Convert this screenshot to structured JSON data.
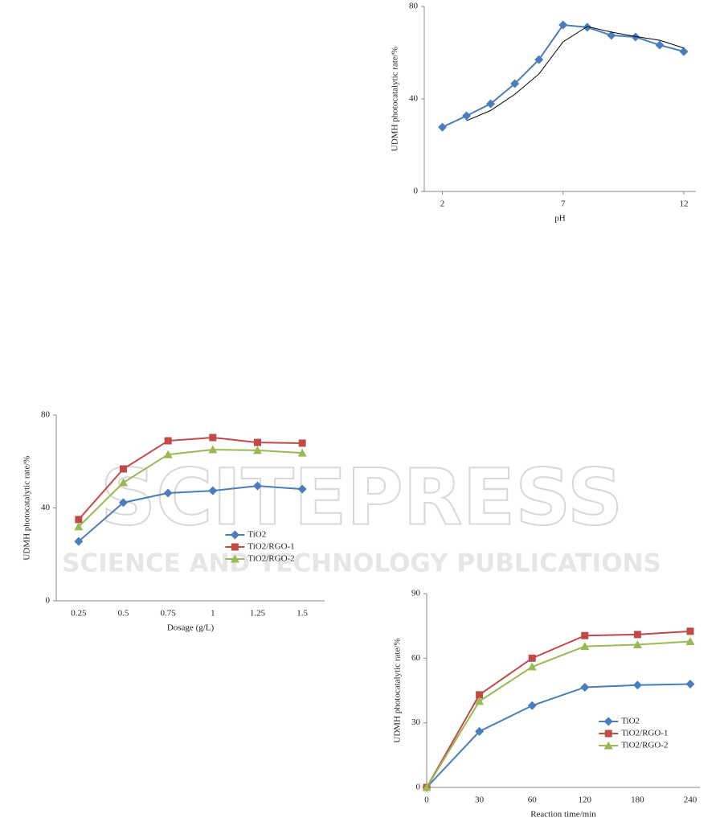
{
  "watermark": {
    "title": "SCITEPRESS",
    "subtitle": "SCIENCE AND TECHNOLOGY PUBLICATIONS"
  },
  "chart_data": [
    {
      "type": "line",
      "x_label": "pH",
      "y_label": "UDMH photocatalytic  rate/%",
      "x": [
        2,
        3,
        4,
        5,
        6,
        7,
        8,
        9,
        10,
        11,
        12
      ],
      "xlim": [
        1.25,
        12.5
      ],
      "xticks": [
        2,
        7,
        12
      ],
      "ylim": [
        0,
        80
      ],
      "yticks": [
        0,
        40,
        80
      ],
      "series": [
        {
          "color": "#4a7ebb",
          "marker": "diamond",
          "values": [
            27.8,
            32.7,
            37.9,
            46.6,
            57,
            72,
            71,
            67.5,
            66.8,
            63.3,
            60.5
          ]
        },
        {
          "color": "#000000",
          "values": [
            null,
            30.6,
            35,
            42,
            50.8,
            64.7,
            71.3,
            68.9,
            67,
            65.4,
            62
          ]
        }
      ]
    },
    {
      "type": "line",
      "x_label": "Dosage (g/L)",
      "y_label": "UDMH photocatalytic  rate/%",
      "categories": [
        "0.25",
        "0.5",
        "0.75",
        "1",
        "1.25",
        "1.5"
      ],
      "ylim": [
        0,
        80
      ],
      "yticks": [
        0,
        40,
        80
      ],
      "legend": "lower right",
      "series": [
        {
          "name": "TiO2",
          "color": "#4a7ebb",
          "marker": "diamond",
          "values": [
            25.6,
            42.3,
            46.4,
            47.4,
            49.5,
            48.1
          ]
        },
        {
          "name": "TiO2/RGO-1",
          "color": "#be4b48",
          "marker": "square",
          "values": [
            35,
            56.8,
            68.9,
            70.3,
            68.2,
            67.9
          ]
        },
        {
          "name": "TiO2/RGO-2",
          "color": "#98b954",
          "marker": "triangle",
          "values": [
            31.9,
            50.9,
            63,
            65.1,
            64.8,
            63.7
          ]
        }
      ]
    },
    {
      "type": "line",
      "x_label": "Reaction time/min",
      "y_label": "UDMH photocatalytic rate/%",
      "categories": [
        "0",
        "30",
        "60",
        "120",
        "180",
        "240"
      ],
      "ylim": [
        0,
        90
      ],
      "yticks": [
        0,
        30,
        60,
        90
      ],
      "legend": "lower right",
      "series": [
        {
          "name": "TiO2",
          "color": "#4a7ebb",
          "marker": "diamond",
          "values": [
            0,
            26,
            38,
            46.5,
            47.5,
            48
          ]
        },
        {
          "name": "TiO2/RGO-1",
          "color": "#be4b48",
          "marker": "square",
          "values": [
            0,
            43,
            60,
            70.5,
            71,
            72.5
          ]
        },
        {
          "name": "TiO2/RGO-2",
          "color": "#98b954",
          "marker": "triangle",
          "values": [
            0,
            40,
            56,
            65.5,
            66.3,
            67.8
          ]
        }
      ]
    }
  ]
}
